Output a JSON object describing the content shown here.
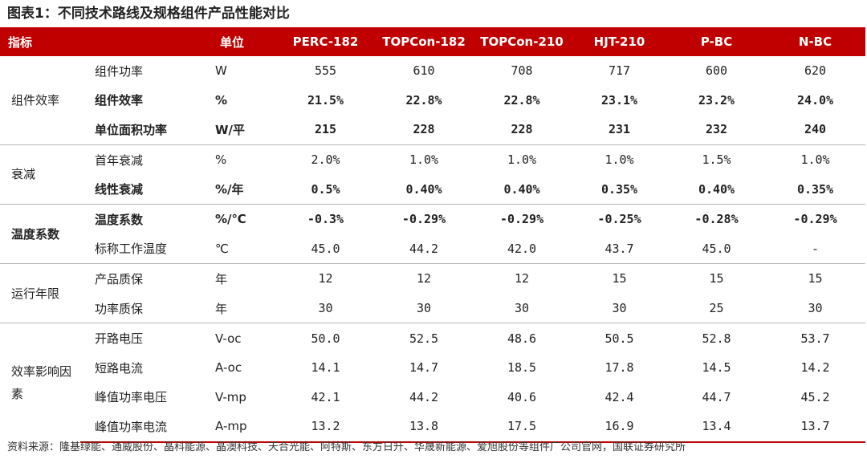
{
  "title": "图表1：不同技术路线及规格组件产品性能对比",
  "header": [
    "指标",
    "单位",
    "PERC-182",
    "TOPCon-182",
    "TOPCon-210",
    "HJT-210",
    "P-BC",
    "N-BC"
  ],
  "groups": [
    {
      "name": "组件效率",
      "rows": [
        {
          "metric": "组件功率",
          "unit": "W",
          "values": [
            "555",
            "610",
            "708",
            "717",
            "600",
            "620"
          ],
          "bold": false
        },
        {
          "metric": "组件效率",
          "unit": "%",
          "values": [
            "21.5%",
            "22.8%",
            "22.8%",
            "23.1%",
            "23.2%",
            "24.0%"
          ],
          "bold": true
        },
        {
          "metric": "单位面积功率",
          "unit": "W/平",
          "values": [
            "215",
            "228",
            "228",
            "231",
            "232",
            "240"
          ],
          "bold": true
        }
      ]
    },
    {
      "name": "衰减",
      "rows": [
        {
          "metric": "首年衰减",
          "unit": "%",
          "values": [
            "2.0%",
            "1.0%",
            "1.0%",
            "1.0%",
            "1.5%",
            "1.0%"
          ],
          "bold": false
        },
        {
          "metric": "线性衰减",
          "unit": "%/年",
          "values": [
            "0.5%",
            "0.40%",
            "0.40%",
            "0.35%",
            "0.40%",
            "0.35%"
          ],
          "bold": true
        }
      ]
    },
    {
      "name": "温度系数",
      "rows": [
        {
          "metric": "温度系数",
          "unit": "%/℃",
          "values": [
            "-0.3%",
            "-0.29%",
            "-0.29%",
            "-0.25%",
            "-0.28%",
            "-0.29%"
          ],
          "bold": true
        },
        {
          "metric": "标称工作温度",
          "unit": "℃",
          "values": [
            "45.0",
            "44.2",
            "42.0",
            "43.7",
            "45.0",
            "-"
          ],
          "bold": false
        }
      ]
    },
    {
      "name": "运行年限",
      "rows": [
        {
          "metric": "产品质保",
          "unit": "年",
          "values": [
            "12",
            "12",
            "12",
            "15",
            "15",
            "15"
          ],
          "bold": false
        },
        {
          "metric": "功率质保",
          "unit": "年",
          "values": [
            "30",
            "30",
            "30",
            "30",
            "25",
            "30"
          ],
          "bold": false
        }
      ]
    },
    {
      "name": "效率影响因素",
      "rows": [
        {
          "metric": "开路电压",
          "unit": "V-oc",
          "values": [
            "50.0",
            "52.5",
            "48.6",
            "50.5",
            "52.8",
            "53.7"
          ],
          "bold": false
        },
        {
          "metric": "短路电流",
          "unit": "A-oc",
          "values": [
            "14.1",
            "14.7",
            "18.5",
            "17.8",
            "14.5",
            "14.2"
          ],
          "bold": false
        },
        {
          "metric": "峰值功率电压",
          "unit": "V-mp",
          "values": [
            "42.1",
            "44.2",
            "40.6",
            "42.4",
            "44.7",
            "45.2"
          ],
          "bold": false
        },
        {
          "metric": "峰值功率电流",
          "unit": "A-mp",
          "values": [
            "13.2",
            "13.8",
            "17.5",
            "16.9",
            "13.4",
            "13.7"
          ],
          "bold": false
        }
      ]
    }
  ],
  "source": "资料来源：隆基绿能、通威股份、晶科能源、晶澳科技、天合光能、阿特斯、东方日升、华晟新能源、爱旭股份等组件厂公司官网，国联证券研究所",
  "colors": {
    "header_bg": "#c00000",
    "header_text": "#ffffff",
    "rule": "#b7b7b7"
  }
}
